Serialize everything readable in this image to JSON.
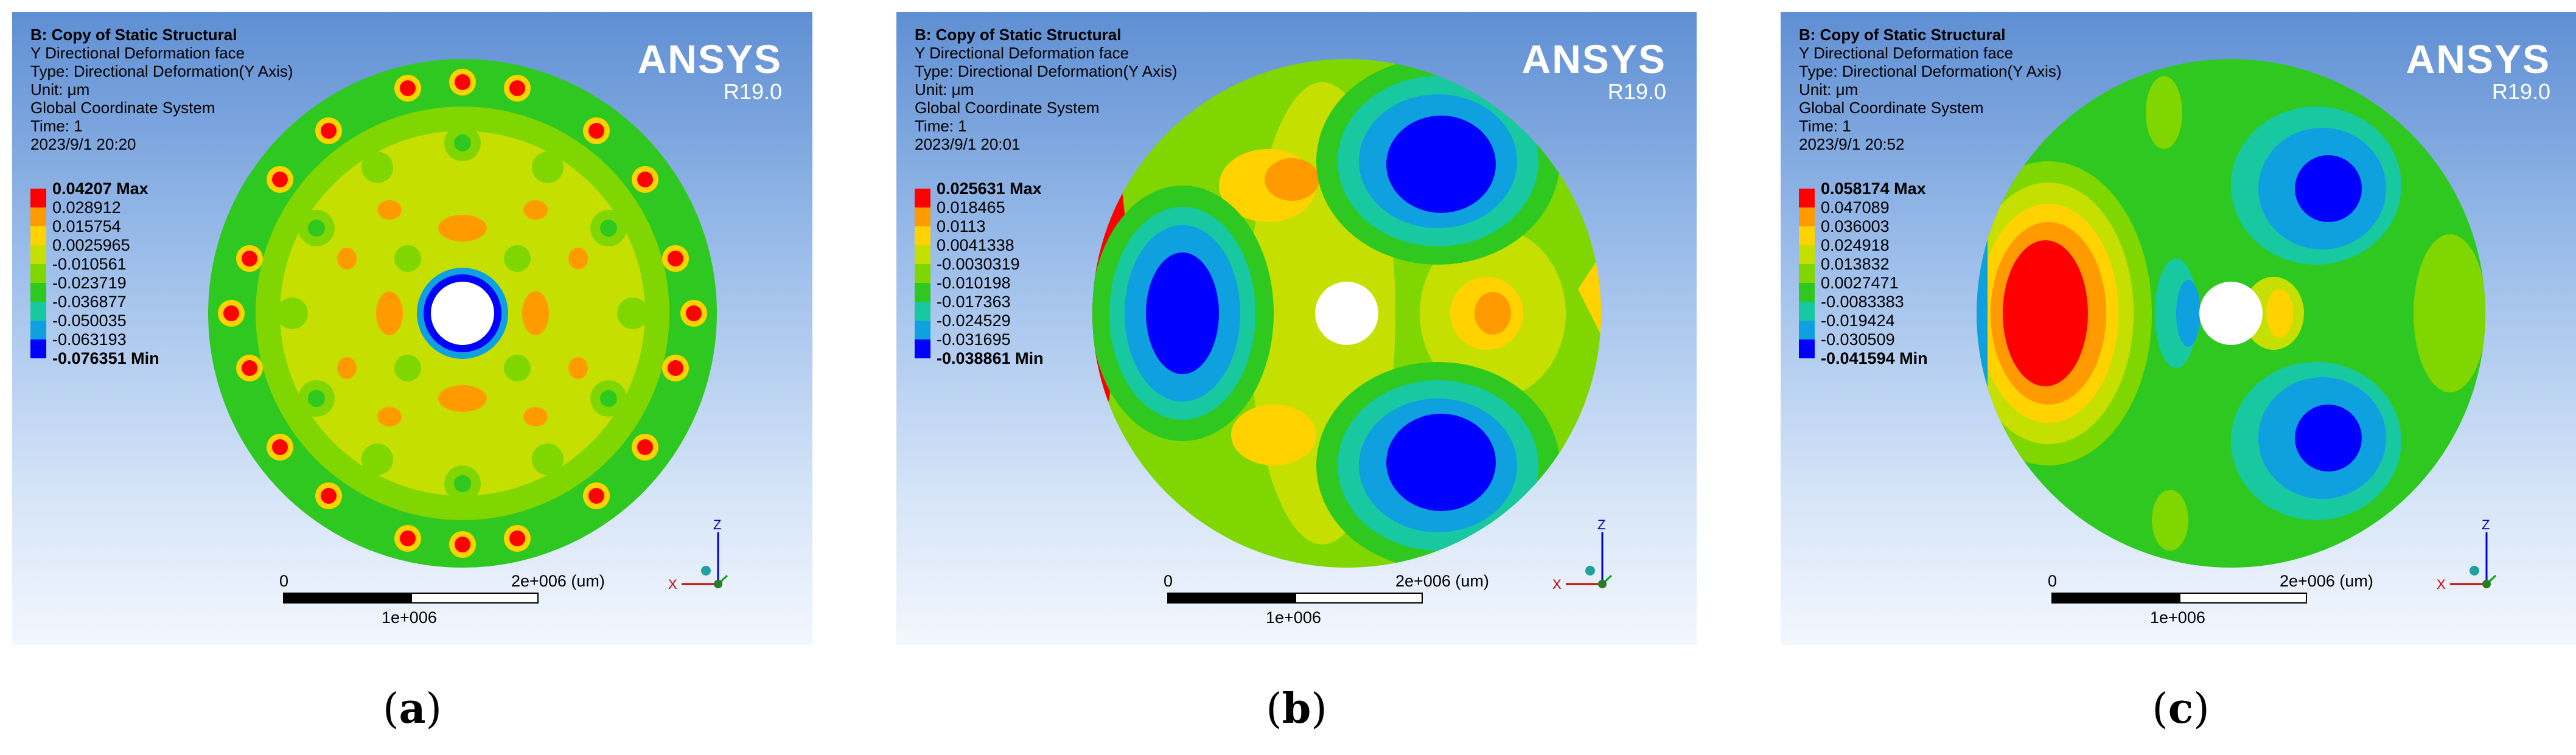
{
  "colors": {
    "scale": [
      "#ff0000",
      "#ff9a00",
      "#ffd200",
      "#c5e000",
      "#7fd600",
      "#2ec820",
      "#18c8a0",
      "#0fa0e0",
      "#0000ff"
    ]
  },
  "panels": [
    {
      "caption_letter": "a",
      "title": "B: Copy of Static Structural",
      "subtitle": "Y Directional Deformation face",
      "type": "Type: Directional Deformation(Y Axis)",
      "unit": "Unit: μm",
      "coord": "Global Coordinate System",
      "time": "Time: 1",
      "date": "2023/9/1 20:20",
      "brand": "ANSYS",
      "version": "R19.0",
      "legend": [
        "0.04207 Max",
        "0.028912",
        "0.015754",
        "0.0025965",
        "-0.010561",
        "-0.023719",
        "-0.036877",
        "-0.050035",
        "-0.063193",
        "-0.076351 Min"
      ],
      "scale_zero": "0",
      "scale_max": "2e+006 (um)",
      "scale_mid": "1e+006",
      "axis_z": "Z",
      "axis_x": "X"
    },
    {
      "caption_letter": "b",
      "title": "B: Copy of Static Structural",
      "subtitle": "Y Directional Deformation face",
      "type": "Type: Directional Deformation(Y Axis)",
      "unit": "Unit: μm",
      "coord": "Global Coordinate System",
      "time": "Time: 1",
      "date": "2023/9/1 20:01",
      "brand": "ANSYS",
      "version": "R19.0",
      "legend": [
        "0.025631 Max",
        "0.018465",
        "0.0113",
        "0.0041338",
        "-0.0030319",
        "-0.010198",
        "-0.017363",
        "-0.024529",
        "-0.031695",
        "-0.038861 Min"
      ],
      "scale_zero": "0",
      "scale_max": "2e+006 (um)",
      "scale_mid": "1e+006",
      "axis_z": "Z",
      "axis_x": "X"
    },
    {
      "caption_letter": "c",
      "title": "B: Copy of Static Structural",
      "subtitle": "Y Directional Deformation face",
      "type": "Type: Directional Deformation(Y Axis)",
      "unit": "Unit: μm",
      "coord": "Global Coordinate System",
      "time": "Time: 1",
      "date": "2023/9/1 20:52",
      "brand": "ANSYS",
      "version": "R19.0",
      "legend": [
        "0.058174 Max",
        "0.047089",
        "0.036003",
        "0.024918",
        "0.013832",
        "0.0027471",
        "-0.0083383",
        "-0.019424",
        "-0.030509",
        "-0.041594 Min"
      ],
      "scale_zero": "0",
      "scale_max": "2e+006 (um)",
      "scale_mid": "1e+006",
      "axis_z": "Z",
      "axis_x": "X"
    }
  ]
}
